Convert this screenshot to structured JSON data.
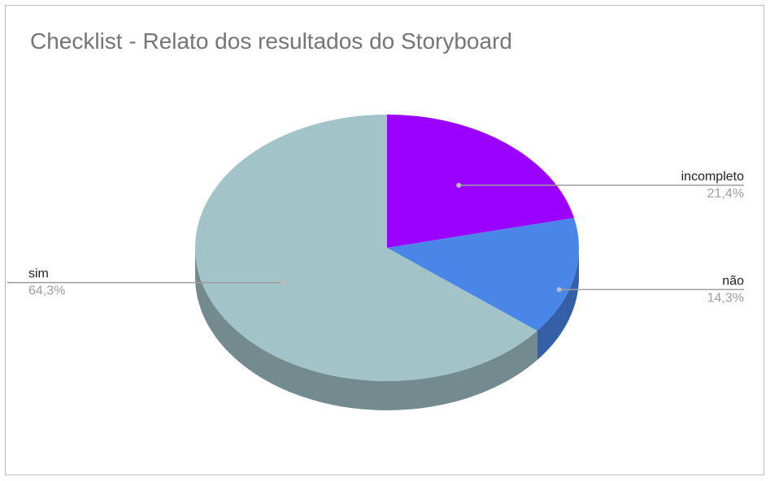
{
  "chart_data": {
    "type": "pie",
    "title": "Checklist - Relato dos resultados do Storyboard",
    "style": "3d",
    "categories": [
      "incompleto",
      "não",
      "sim"
    ],
    "values": [
      21.4,
      14.3,
      64.3
    ],
    "percent_labels": [
      "21,4%",
      "14,3%",
      "64,3%"
    ],
    "colors": [
      "#9900ff",
      "#4a86e8",
      "#a2c4c9"
    ],
    "side_colors": [
      "#6b00b3",
      "#3560a8",
      "#738b8e"
    ],
    "label_placement": "outside-with-leader-lines",
    "legend": "none"
  }
}
